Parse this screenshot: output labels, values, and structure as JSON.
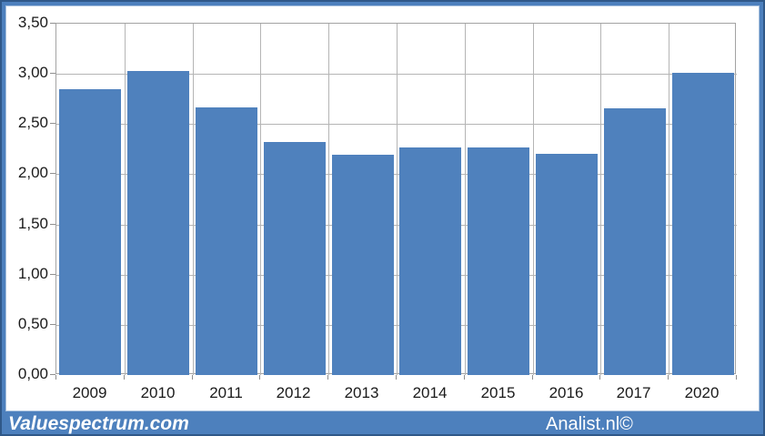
{
  "chart_data": {
    "type": "bar",
    "title": "",
    "xlabel": "",
    "ylabel": "",
    "categories": [
      "2009",
      "2010",
      "2011",
      "2012",
      "2013",
      "2014",
      "2015",
      "2016",
      "2017",
      "2020"
    ],
    "values": [
      2.85,
      3.03,
      2.67,
      2.32,
      2.19,
      2.27,
      2.27,
      2.2,
      2.66,
      3.01
    ],
    "ylim": [
      0,
      3.5
    ],
    "yticks": [
      {
        "value": 0.0,
        "label": "0,00"
      },
      {
        "value": 0.5,
        "label": "0,50"
      },
      {
        "value": 1.0,
        "label": "1,00"
      },
      {
        "value": 1.5,
        "label": "1,50"
      },
      {
        "value": 2.0,
        "label": "2,00"
      },
      {
        "value": 2.5,
        "label": "2,50"
      },
      {
        "value": 3.0,
        "label": "3,00"
      },
      {
        "value": 3.5,
        "label": "3,50"
      }
    ],
    "grid": true,
    "legend": "none",
    "bar_color": "#4f81bd",
    "gridline_color": "#b5b5b5",
    "decimal_separator": ","
  },
  "footer": {
    "left_text": "Valuespectrum.com",
    "right_text": "Analist.nl©"
  },
  "colors": {
    "frame": "#4d80bd",
    "bar": "#4f81bd",
    "plot_border": "#a3a3a3",
    "axis_text": "#1a1a1a",
    "footer_text": "#ffffff"
  }
}
